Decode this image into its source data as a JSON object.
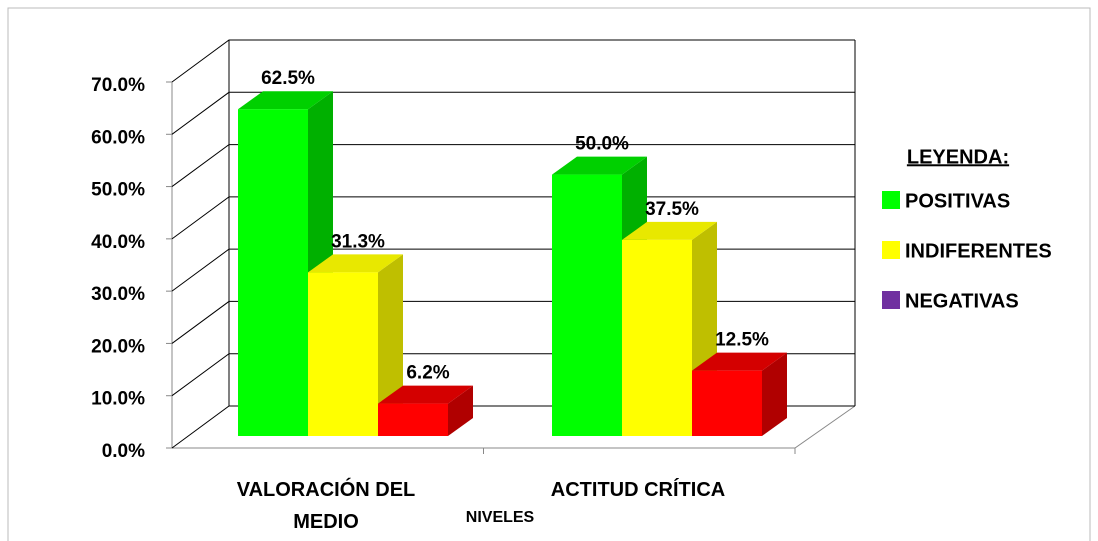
{
  "chart_data": {
    "type": "bar3d",
    "categories": [
      "VALORACIÓN DEL MEDIO",
      "ACTITUD CRÍTICA"
    ],
    "x_label": "NIVELES",
    "legend_title": "LEYENDA:",
    "legend_position": "right",
    "series": [
      {
        "name": "POSITIVAS",
        "color": "#00ff00",
        "side_color": "#00b000",
        "top_color": "#00d000",
        "values": [
          62.5,
          50.0
        ],
        "value_labels": [
          "62.5%",
          "50.0%"
        ]
      },
      {
        "name": "INDIFERENTES",
        "color": "#ffff00",
        "side_color": "#bfbf00",
        "top_color": "#e8e800",
        "values": [
          31.3,
          37.5
        ],
        "value_labels": [
          "31.3%",
          "37.5%"
        ]
      },
      {
        "name": "NEGATIVAS",
        "color": "#ff0000",
        "side_color": "#b00000",
        "top_color": "#d40000",
        "legend_color": "#7030a0",
        "values": [
          6.2,
          12.5
        ],
        "value_labels": [
          "6.2%",
          "12.5%"
        ]
      }
    ],
    "ylim": [
      0,
      70
    ],
    "yticks": [
      {
        "value": 0,
        "label": "0.0%"
      },
      {
        "value": 10,
        "label": "10.0%"
      },
      {
        "value": 20,
        "label": "20.0%"
      },
      {
        "value": 30,
        "label": "30.0%"
      },
      {
        "value": 40,
        "label": "40.0%"
      },
      {
        "value": 50,
        "label": "50.0%"
      },
      {
        "value": 60,
        "label": "60.0%"
      },
      {
        "value": 70,
        "label": "70.0%"
      }
    ],
    "grid": true
  }
}
